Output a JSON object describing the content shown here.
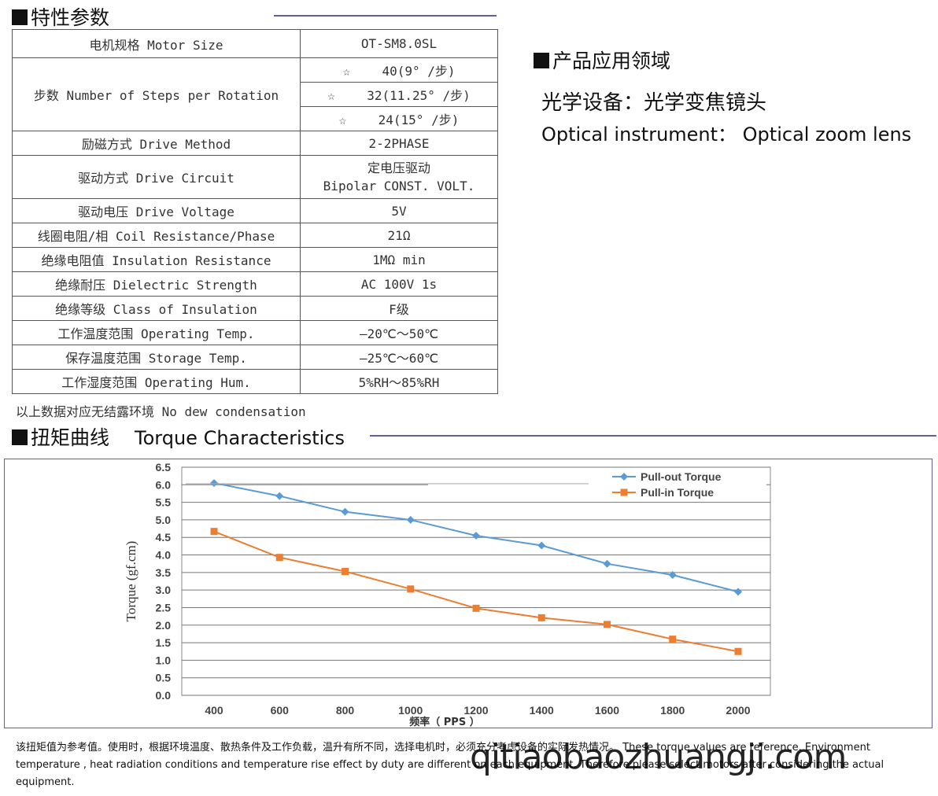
{
  "spec_section": {
    "title": "特性参数"
  },
  "spec_table": {
    "motor_size": {
      "label": "电机规格 Motor Size",
      "value": "OT-SM8.0SL"
    },
    "steps": {
      "label": "步数 Number of Steps per Rotation",
      "star": "☆",
      "options": [
        "40(9° /步)",
        "32(11.25° /步)",
        "24(15° /步)"
      ]
    },
    "drive_method": {
      "label": "励磁方式 Drive Method",
      "value": "2-2PHASE"
    },
    "drive_circuit": {
      "label": "驱动方式 Drive Circuit",
      "value_cn": "定电压驱动",
      "value_en": "Bipolar CONST. VOLT."
    },
    "rows": [
      {
        "label": "驱动电压 Drive Voltage",
        "value": "5V"
      },
      {
        "label": "线圈电阻/相 Coil Resistance/Phase",
        "value": "21Ω"
      },
      {
        "label": "绝缘电阻值 Insulation Resistance",
        "value": "1MΩ min"
      },
      {
        "label": "绝缘耐压 Dielectric Strength",
        "value": "AC 100V 1s"
      },
      {
        "label": "绝缘等级 Class of Insulation",
        "value": "F级"
      },
      {
        "label": "工作温度范围 Operating Temp.",
        "value": "—20℃～50℃"
      },
      {
        "label": "保存温度范围 Storage Temp.",
        "value": "—25℃～60℃"
      },
      {
        "label": "工作湿度范围 Operating Hum.",
        "value": "5%RH～85%RH"
      }
    ],
    "note": "以上数据对应无结露环境 No dew condensation"
  },
  "application": {
    "title": "产品应用领域",
    "cn": "光学设备：光学变焦镜头",
    "en": "Optical instrument： Optical zoom lens"
  },
  "torque_section": {
    "title_cn": "扭矩曲线",
    "title_en": "Torque  Characteristics"
  },
  "chart_data": {
    "type": "line",
    "xlabel": "频率（ PPS ）",
    "ylabel": "Torque  (gf.cm)",
    "x": [
      400,
      600,
      800,
      1000,
      1200,
      1400,
      1600,
      1800,
      2000
    ],
    "ylim": [
      0,
      6.5
    ],
    "yticks": [
      "0.0",
      "0.5",
      "1.0",
      "1.5",
      "2.0",
      "2.5",
      "3.0",
      "3.5",
      "4.0",
      "4.5",
      "5.0",
      "5.5",
      "6.0",
      "6.5"
    ],
    "grid": true,
    "legend_position": "top-right",
    "series": [
      {
        "name": "Pull-out Torque",
        "color": "#5b9bd5",
        "marker": "diamond",
        "values": [
          6.05,
          5.68,
          5.23,
          5.0,
          4.55,
          4.27,
          3.75,
          3.43,
          2.95
        ]
      },
      {
        "name": "Pull-in Torque",
        "color": "#ed7d31",
        "marker": "square",
        "values": [
          4.67,
          3.93,
          3.53,
          3.03,
          2.48,
          2.21,
          2.02,
          1.6,
          1.25
        ]
      }
    ]
  },
  "footnote": "该扭矩值为参考值。使用时，根据环境温度、散热条件及工作负载，温升有所不同，选择电机时，必须充分考虑设备的实际发热情况。 These torque values are reference. Environment temperature , heat radiation conditions and temperature rise effect by duty are different on each equipment. Therefore please select motors after considering the actual equipment.",
  "watermark": "qitiaobaozhuangji.com"
}
